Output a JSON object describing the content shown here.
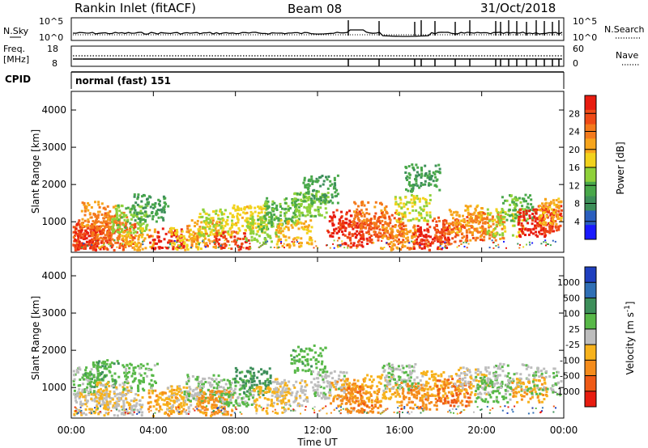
{
  "header": {
    "station": "Rankin Inlet (fitACF)",
    "beam": "Beam 08",
    "date": "31/Oct/2018"
  },
  "strip1": {
    "left_label": "N.Sky",
    "left_ticks": [
      "10^5",
      "10^0"
    ],
    "right_label": "N.Search",
    "right_ticks": [
      "10^5",
      "10^0"
    ]
  },
  "strip2": {
    "left_label_1": "Freq.",
    "left_label_2": "[MHz]",
    "left_ticks": [
      "18",
      "8"
    ],
    "right_label": "Nave",
    "right_ticks": [
      "60",
      "0"
    ]
  },
  "cpid": {
    "label": "CPID",
    "mode": "normal (fast) 151"
  },
  "panels": {
    "power": {
      "ylabel": "Slant Range [km]",
      "yticks": [
        "1000",
        "2000",
        "3000",
        "4000"
      ],
      "colorbar_label": "Power [dB]",
      "colorbar_ticks": [
        "4",
        "8",
        "12",
        "16",
        "20",
        "24",
        "28"
      ],
      "colors": [
        "#1a1aff",
        "#2b5fbf",
        "#3d8f5a",
        "#49a84a",
        "#8fd13a",
        "#f2d21c",
        "#f7a51c",
        "#f47a1c",
        "#ef4a16",
        "#e81c10"
      ]
    },
    "velocity": {
      "ylabel": "Slant Range [km]",
      "yticks": [
        "1000",
        "2000",
        "3000",
        "4000"
      ],
      "colorbar_label": "Velocity [m s",
      "colorbar_sup": "-1",
      "colorbar_close": "]",
      "colorbar_ticks": [
        "1000",
        "500",
        "100",
        "25",
        "-25",
        "-100",
        "-500",
        "-1000"
      ],
      "colors": [
        "#1f3fbf",
        "#2f6fb5",
        "#3d8f5a",
        "#58b848",
        "#bdbdbd",
        "#f7b21c",
        "#f58c1c",
        "#ef5a16",
        "#e81c10"
      ]
    }
  },
  "xaxis": {
    "label": "Time UT",
    "ticks": [
      "00:00",
      "04:00",
      "08:00",
      "12:00",
      "16:00",
      "20:00",
      "00:00"
    ]
  },
  "chart_data": {
    "type": "heatmap",
    "title": "Rankin Inlet (fitACF)",
    "x": [
      "00:00",
      "04:00",
      "08:00",
      "12:00",
      "16:00",
      "20:00",
      "00:00"
    ],
    "xlabel": "Time UT",
    "ylabel": "Slant Range [km]",
    "ylim": [
      180,
      4500
    ],
    "series": [
      {
        "name": "Power [dB]",
        "zlim": [
          0,
          32
        ],
        "blobs": [
          {
            "t": 0.4,
            "r": 700,
            "v": 26
          },
          {
            "t": 0.6,
            "r": 600,
            "v": 30
          },
          {
            "t": 1.0,
            "r": 500,
            "v": 28
          },
          {
            "t": 1.3,
            "r": 1200,
            "v": 22
          },
          {
            "t": 1.8,
            "r": 900,
            "v": 24
          },
          {
            "t": 2.3,
            "r": 600,
            "v": 26
          },
          {
            "t": 2.8,
            "r": 1100,
            "v": 14
          },
          {
            "t": 3.2,
            "r": 500,
            "v": 20
          },
          {
            "t": 3.8,
            "r": 1400,
            "v": 10
          },
          {
            "t": 4.6,
            "r": 500,
            "v": 30
          },
          {
            "t": 5.6,
            "r": 500,
            "v": 18
          },
          {
            "t": 6.4,
            "r": 700,
            "v": 22
          },
          {
            "t": 7.0,
            "r": 1000,
            "v": 16
          },
          {
            "t": 7.8,
            "r": 400,
            "v": 28
          },
          {
            "t": 8.6,
            "r": 1100,
            "v": 18
          },
          {
            "t": 9.3,
            "r": 800,
            "v": 14
          },
          {
            "t": 10.2,
            "r": 1300,
            "v": 12
          },
          {
            "t": 10.8,
            "r": 700,
            "v": 20
          },
          {
            "t": 11.6,
            "r": 1500,
            "v": 14
          },
          {
            "t": 12.1,
            "r": 1900,
            "v": 10
          },
          {
            "t": 13.3,
            "r": 1000,
            "v": 30
          },
          {
            "t": 13.8,
            "r": 700,
            "v": 28
          },
          {
            "t": 14.5,
            "r": 1200,
            "v": 24
          },
          {
            "t": 15.3,
            "r": 900,
            "v": 26
          },
          {
            "t": 15.9,
            "r": 600,
            "v": 22
          },
          {
            "t": 16.6,
            "r": 1400,
            "v": 16
          },
          {
            "t": 17.1,
            "r": 2200,
            "v": 10
          },
          {
            "t": 17.5,
            "r": 600,
            "v": 30
          },
          {
            "t": 18.4,
            "r": 800,
            "v": 26
          },
          {
            "t": 19.2,
            "r": 1100,
            "v": 20
          },
          {
            "t": 20.2,
            "r": 900,
            "v": 24
          },
          {
            "t": 21.1,
            "r": 1000,
            "v": 16
          },
          {
            "t": 21.8,
            "r": 1400,
            "v": 12
          },
          {
            "t": 22.6,
            "r": 1000,
            "v": 30
          },
          {
            "t": 23.4,
            "r": 1100,
            "v": 28
          },
          {
            "t": 23.6,
            "r": 1300,
            "v": 20
          }
        ]
      },
      {
        "name": "Velocity [m s-1]",
        "zlim": [
          -1000,
          1000
        ],
        "blobs": [
          {
            "t": 0.4,
            "r": 1200,
            "v": 120
          },
          {
            "t": 0.8,
            "r": 600,
            "v": -80
          },
          {
            "t": 1.4,
            "r": 1400,
            "v": 300
          },
          {
            "t": 2.0,
            "r": 800,
            "v": -150
          },
          {
            "t": 2.6,
            "r": 500,
            "v": -40
          },
          {
            "t": 3.3,
            "r": 1300,
            "v": 200
          },
          {
            "t": 4.5,
            "r": 600,
            "v": -300
          },
          {
            "t": 5.5,
            "r": 700,
            "v": -120
          },
          {
            "t": 6.3,
            "r": 1000,
            "v": 90
          },
          {
            "t": 7.0,
            "r": 600,
            "v": -400
          },
          {
            "t": 8.0,
            "r": 900,
            "v": 150
          },
          {
            "t": 8.8,
            "r": 1200,
            "v": 400
          },
          {
            "t": 9.7,
            "r": 700,
            "v": -200
          },
          {
            "t": 10.6,
            "r": 900,
            "v": -60
          },
          {
            "t": 11.5,
            "r": 1800,
            "v": 250
          },
          {
            "t": 12.5,
            "r": 1100,
            "v": 30
          },
          {
            "t": 13.4,
            "r": 900,
            "v": -350
          },
          {
            "t": 14.2,
            "r": 700,
            "v": -500
          },
          {
            "t": 15.1,
            "r": 1000,
            "v": -250
          },
          {
            "t": 16.0,
            "r": 1300,
            "v": 100
          },
          {
            "t": 16.9,
            "r": 800,
            "v": -450
          },
          {
            "t": 17.7,
            "r": 1100,
            "v": -200
          },
          {
            "t": 18.6,
            "r": 900,
            "v": -600
          },
          {
            "t": 19.5,
            "r": 1200,
            "v": -100
          },
          {
            "t": 20.5,
            "r": 1000,
            "v": 200
          },
          {
            "t": 21.4,
            "r": 1300,
            "v": 80
          },
          {
            "t": 22.3,
            "r": 1000,
            "v": -300
          },
          {
            "t": 23.2,
            "r": 1200,
            "v": 120
          }
        ]
      }
    ]
  }
}
